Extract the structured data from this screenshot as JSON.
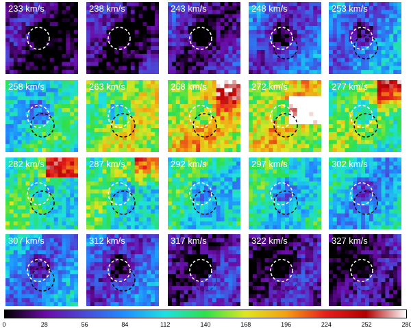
{
  "panels": [
    {
      "label": "233 km/s",
      "level": 0.06,
      "hot": []
    },
    {
      "label": "238 km/s",
      "level": 0.08,
      "hot": []
    },
    {
      "label": "243 km/s",
      "level": 0.12,
      "hot": []
    },
    {
      "label": "248 km/s",
      "level": 0.22,
      "hot": []
    },
    {
      "label": "253 km/s",
      "level": 0.28,
      "hot": []
    },
    {
      "label": "258 km/s",
      "level": 0.42,
      "hot": []
    },
    {
      "label": "263 km/s",
      "level": 0.55,
      "hot": []
    },
    {
      "label": "268 km/s",
      "level": 0.62,
      "hot": [
        "tr"
      ]
    },
    {
      "label": "272 km/s",
      "level": 0.6,
      "hot": [
        "r"
      ]
    },
    {
      "label": "277 km/s",
      "level": 0.5,
      "hot": [
        "tr"
      ]
    },
    {
      "label": "282 km/s",
      "level": 0.45,
      "hot": [
        "t"
      ]
    },
    {
      "label": "287 km/s",
      "level": 0.45,
      "hot": [
        "tr"
      ]
    },
    {
      "label": "292 km/s",
      "level": 0.42,
      "hot": []
    },
    {
      "label": "297 km/s",
      "level": 0.42,
      "hot": []
    },
    {
      "label": "302 km/s",
      "level": 0.36,
      "hot": []
    },
    {
      "label": "307 km/s",
      "level": 0.3,
      "hot": []
    },
    {
      "label": "312 km/s",
      "level": 0.22,
      "hot": []
    },
    {
      "label": "317 km/s",
      "level": 0.12,
      "hot": []
    },
    {
      "label": "322 km/s",
      "level": 0.08,
      "hot": []
    },
    {
      "label": "327 km/s",
      "level": 0.06,
      "hot": []
    }
  ],
  "colorbar": {
    "ticks": [
      "0",
      "28",
      "56",
      "84",
      "112",
      "140",
      "168",
      "196",
      "224",
      "252",
      "280"
    ],
    "colors": [
      "#000000",
      "#6a0aa5",
      "#4a4ad8",
      "#1f8fff",
      "#1fe0e0",
      "#2fe04a",
      "#dfe622",
      "#f3a012",
      "#e61e1e",
      "#b30000",
      "#ffffff"
    ]
  }
}
